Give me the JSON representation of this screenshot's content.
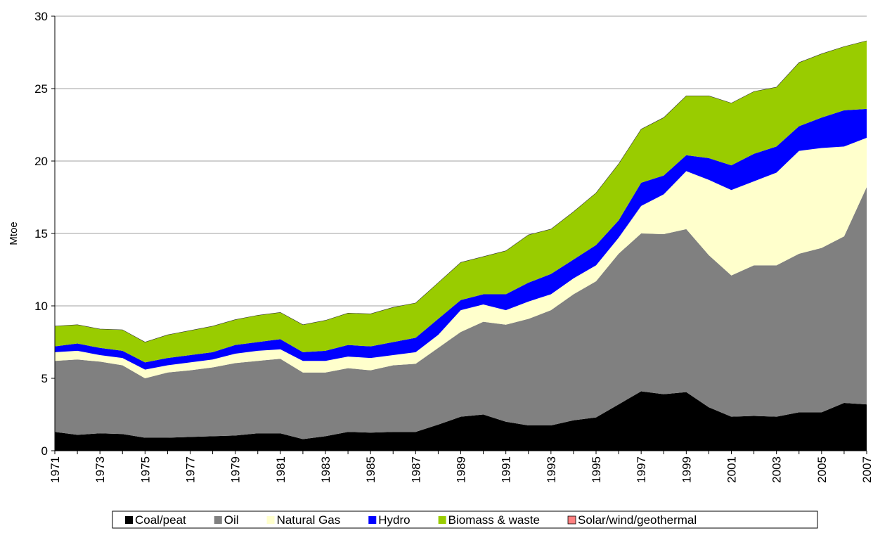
{
  "chart_data": {
    "type": "stacked_area",
    "y_label": "Mtoe",
    "categories": [
      "1971",
      null,
      "1973",
      null,
      "1975",
      null,
      "1977",
      null,
      "1979",
      null,
      "1981",
      null,
      "1983",
      null,
      "1985",
      null,
      "1987",
      null,
      "1989",
      null,
      "1991",
      null,
      "1993",
      null,
      "1995",
      null,
      "1997",
      null,
      "1999",
      null,
      "2001",
      null,
      "2003",
      null,
      "2005",
      null,
      "2007"
    ],
    "ylim": [
      0,
      30
    ],
    "yticks": [
      0,
      5,
      10,
      15,
      20,
      25,
      30
    ],
    "grid": true,
    "legend": "bottom",
    "series": [
      {
        "name": "Coal/peat",
        "color": "#000000",
        "values": [
          1.3,
          1.1,
          1.2,
          1.15,
          0.9,
          0.9,
          0.95,
          1.0,
          1.05,
          1.2,
          1.2,
          0.8,
          1.0,
          1.3,
          1.25,
          1.3,
          1.3,
          1.8,
          2.35,
          2.5,
          2.0,
          1.75,
          1.75,
          2.1,
          2.3,
          3.2,
          4.1,
          3.9,
          4.05,
          3.0,
          2.35,
          2.4,
          2.35,
          2.65,
          2.65,
          3.3,
          3.2
        ]
      },
      {
        "name": "Oil",
        "color": "#808080",
        "values": [
          4.9,
          5.2,
          4.95,
          4.75,
          4.1,
          4.5,
          4.6,
          4.75,
          5.0,
          5.0,
          5.15,
          4.6,
          4.4,
          4.4,
          4.3,
          4.6,
          4.7,
          5.3,
          5.85,
          6.4,
          6.7,
          7.35,
          7.95,
          8.7,
          9.4,
          10.4,
          10.9,
          11.05,
          11.25,
          10.5,
          9.75,
          10.4,
          10.45,
          10.95,
          11.35,
          11.5,
          15.0
        ]
      },
      {
        "name": "Natural Gas",
        "color": "#ffffcc",
        "values": [
          0.6,
          0.6,
          0.45,
          0.5,
          0.6,
          0.5,
          0.55,
          0.55,
          0.65,
          0.7,
          0.65,
          0.8,
          0.8,
          0.8,
          0.85,
          0.7,
          0.8,
          0.9,
          1.5,
          1.2,
          1.0,
          1.2,
          1.1,
          1.1,
          1.1,
          1.1,
          1.9,
          2.75,
          4.0,
          5.2,
          5.9,
          5.8,
          6.4,
          7.1,
          6.9,
          6.2,
          3.4
        ]
      },
      {
        "name": "Hydro",
        "color": "#0000ff",
        "values": [
          0.4,
          0.5,
          0.5,
          0.5,
          0.5,
          0.5,
          0.5,
          0.5,
          0.6,
          0.6,
          0.7,
          0.6,
          0.7,
          0.8,
          0.8,
          0.9,
          1.0,
          1.1,
          0.7,
          0.7,
          1.1,
          1.3,
          1.4,
          1.3,
          1.4,
          1.2,
          1.6,
          1.3,
          1.1,
          1.5,
          1.7,
          1.9,
          1.8,
          1.7,
          2.1,
          2.5,
          2.0
        ]
      },
      {
        "name": "Biomass & waste",
        "color": "#99cc00",
        "values": [
          1.4,
          1.3,
          1.3,
          1.45,
          1.4,
          1.6,
          1.7,
          1.8,
          1.75,
          1.85,
          1.85,
          1.9,
          2.1,
          2.2,
          2.25,
          2.4,
          2.4,
          2.5,
          2.6,
          2.6,
          3.0,
          3.3,
          3.1,
          3.3,
          3.6,
          3.9,
          3.7,
          4.0,
          4.1,
          4.3,
          4.3,
          4.3,
          4.1,
          4.4,
          4.4,
          4.4,
          4.7
        ]
      },
      {
        "name": "Solar/wind/geothermal",
        "color": "#ff8080",
        "values": [
          0,
          0,
          0,
          0,
          0,
          0,
          0,
          0,
          0,
          0,
          0,
          0,
          0,
          0,
          0,
          0,
          0,
          0,
          0,
          0,
          0,
          0,
          0,
          0,
          0,
          0,
          0,
          0,
          0,
          0,
          0,
          0,
          0,
          0,
          0,
          0,
          0
        ]
      }
    ]
  }
}
